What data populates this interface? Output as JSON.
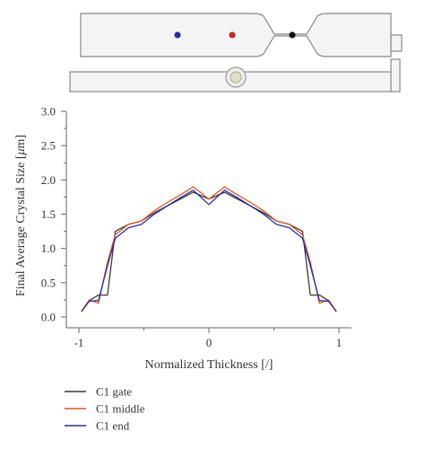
{
  "chart_data": {
    "type": "line",
    "title": "",
    "xlabel": "Normalized Thickness [/]",
    "ylabel_prefix": "Final Average Crystal Size [",
    "ylabel_unit": "μ",
    "ylabel_suffix": "m]",
    "xlim": [
      -1,
      1
    ],
    "ylim": [
      0,
      3.0
    ],
    "x_ticks": [
      "-1",
      "0",
      "1"
    ],
    "y_ticks": [
      "0.0",
      "0.5",
      "1.0",
      "1.5",
      "2.0",
      "2.5",
      "3.0"
    ],
    "grid": false,
    "legend_position": "bottom-left",
    "series": [
      {
        "name": "C1 gate",
        "color": "#3a3a3a",
        "x": [
          -0.98,
          -0.92,
          -0.85,
          -0.78,
          -0.72,
          -0.62,
          -0.52,
          -0.42,
          -0.32,
          -0.22,
          -0.12,
          0.0,
          0.12,
          0.22,
          0.32,
          0.42,
          0.52,
          0.62,
          0.72,
          0.78,
          0.85,
          0.92,
          0.98
        ],
        "y": [
          0.08,
          0.24,
          0.32,
          0.32,
          1.25,
          1.35,
          1.4,
          1.52,
          1.62,
          1.72,
          1.82,
          1.72,
          1.82,
          1.72,
          1.62,
          1.52,
          1.4,
          1.35,
          1.25,
          0.32,
          0.32,
          0.24,
          0.08
        ]
      },
      {
        "name": "C1 middle",
        "color": "#e0541e",
        "x": [
          -0.98,
          -0.92,
          -0.85,
          -0.78,
          -0.72,
          -0.62,
          -0.52,
          -0.42,
          -0.32,
          -0.22,
          -0.12,
          0.0,
          0.12,
          0.22,
          0.32,
          0.42,
          0.52,
          0.62,
          0.72,
          0.78,
          0.85,
          0.92,
          0.98
        ],
        "y": [
          0.08,
          0.25,
          0.2,
          0.8,
          1.2,
          1.35,
          1.4,
          1.55,
          1.67,
          1.78,
          1.9,
          1.72,
          1.9,
          1.78,
          1.67,
          1.55,
          1.4,
          1.35,
          1.2,
          0.8,
          0.2,
          0.25,
          0.08
        ]
      },
      {
        "name": "C1 end",
        "color": "#2a2aa8",
        "x": [
          -0.98,
          -0.92,
          -0.85,
          -0.78,
          -0.72,
          -0.62,
          -0.52,
          -0.42,
          -0.32,
          -0.22,
          -0.12,
          0.0,
          0.12,
          0.22,
          0.32,
          0.42,
          0.52,
          0.62,
          0.72,
          0.78,
          0.85,
          0.92,
          0.98
        ],
        "y": [
          0.08,
          0.23,
          0.24,
          0.75,
          1.15,
          1.3,
          1.35,
          1.5,
          1.62,
          1.74,
          1.85,
          1.64,
          1.85,
          1.74,
          1.62,
          1.5,
          1.35,
          1.3,
          1.15,
          0.75,
          0.24,
          0.23,
          0.08
        ]
      }
    ]
  },
  "specimen": {
    "marker_colors": [
      "#2b2baa",
      "#cc2a1e",
      "#111111"
    ]
  }
}
